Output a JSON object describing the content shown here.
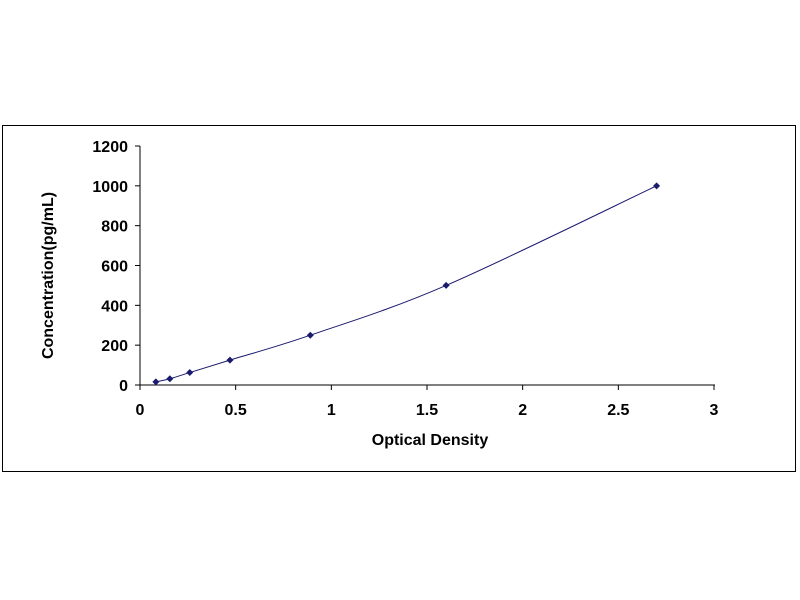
{
  "chart_data": {
    "type": "scatter",
    "title": "",
    "xlabel": "Optical Density",
    "ylabel": "Concentration(pg/mL)",
    "xlim": [
      0,
      3
    ],
    "ylim": [
      0,
      1200
    ],
    "x_ticks": [
      "0",
      "0.5",
      "1",
      "1.5",
      "2",
      "2.5",
      "3"
    ],
    "y_ticks": [
      "0",
      "200",
      "400",
      "600",
      "800",
      "1000",
      "1200"
    ],
    "grid": false,
    "legend": "none",
    "trendline": "smooth curve through points",
    "colors": {
      "marker": "#1a1a6e",
      "line": "#1a1a6e",
      "axis": "#000000"
    },
    "series": [
      {
        "marker": "diamond",
        "x": [
          0.083,
          0.156,
          0.26,
          0.47,
          0.89,
          1.6,
          2.7
        ],
        "y": [
          15.6,
          31.2,
          62.5,
          125,
          250,
          500,
          1000
        ]
      }
    ]
  }
}
